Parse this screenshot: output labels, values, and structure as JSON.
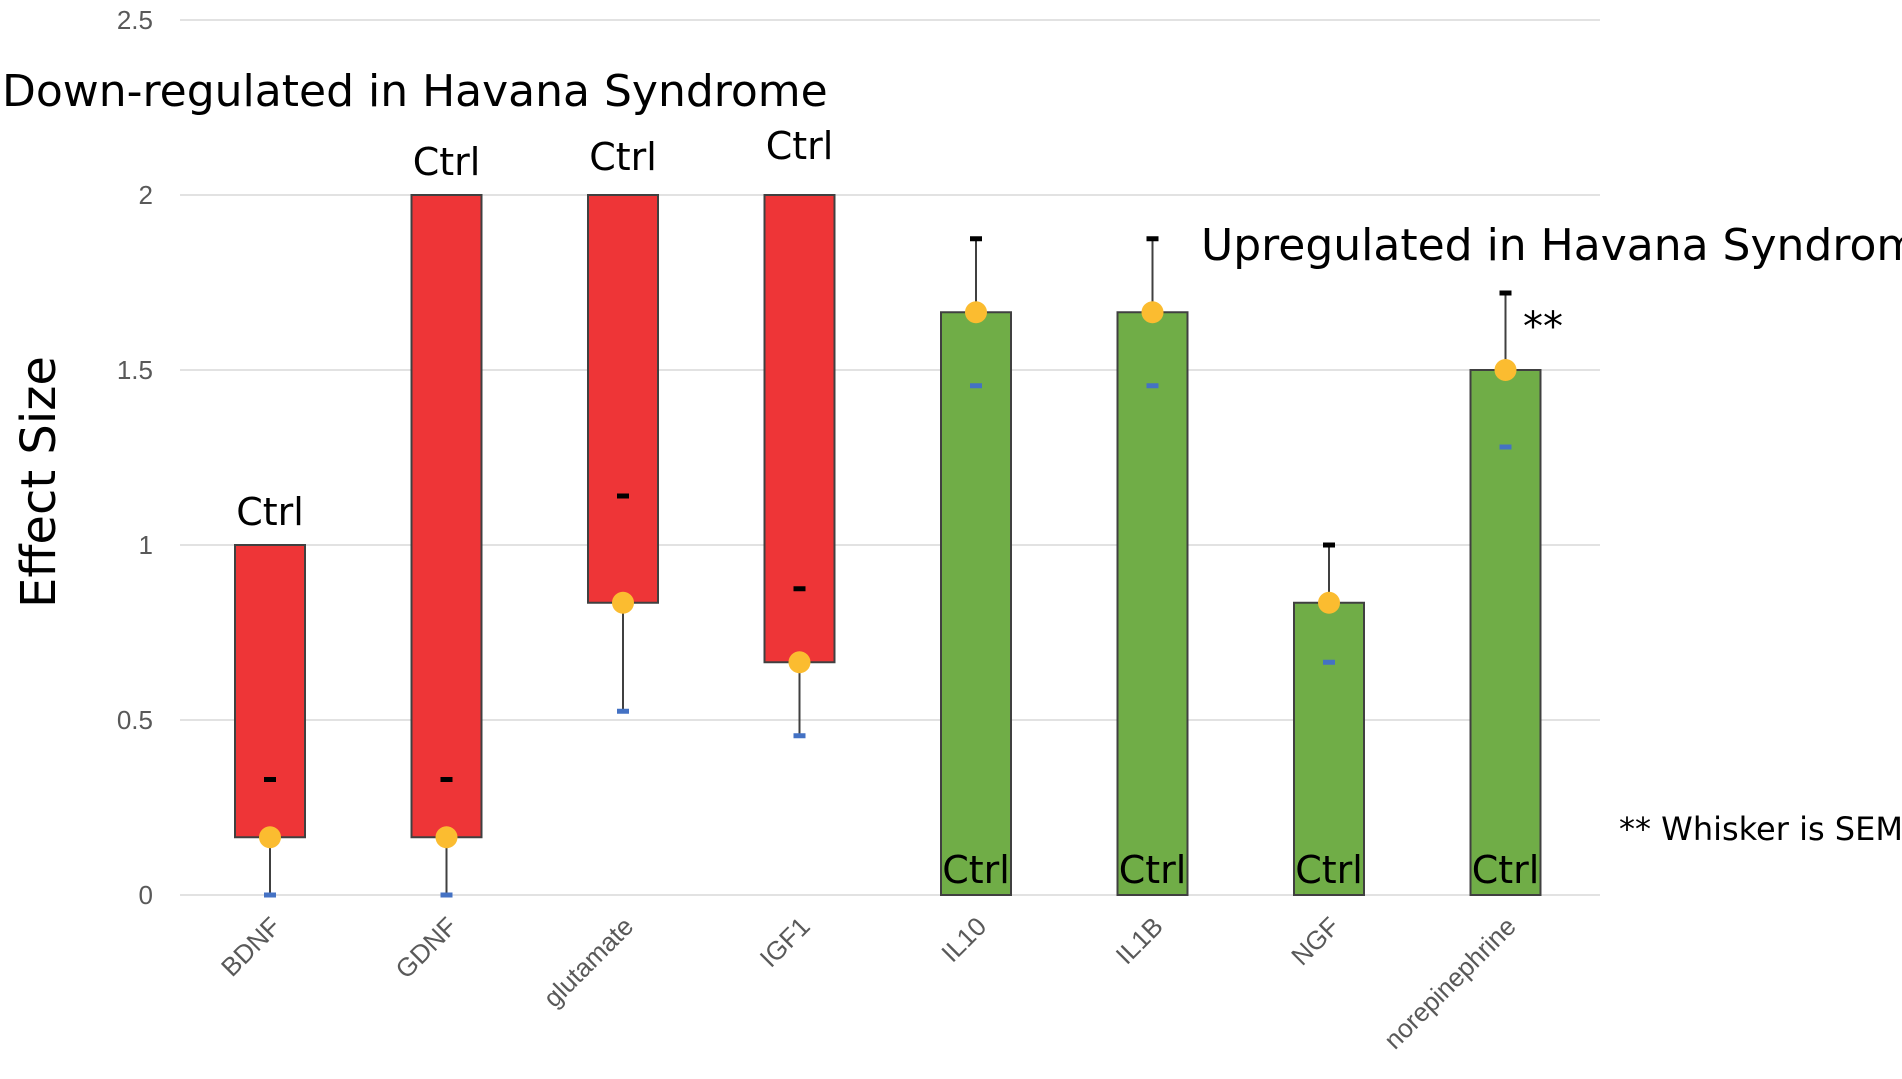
{
  "chart_data": {
    "type": "bar",
    "ylabel": "Effect Size",
    "xlabel": "",
    "ylim": [
      0,
      2.5
    ],
    "yticks": [
      0,
      0.5,
      1,
      1.5,
      2,
      2.5
    ],
    "ytick_labels": [
      "0",
      "0.5",
      "1",
      "1.5",
      "2",
      "2.5"
    ],
    "grid": true,
    "categories": [
      "BDNF",
      "GDNF",
      "glutamate",
      "IGF1",
      "IL10",
      "IL1B",
      "NGF",
      "norepinephrine"
    ],
    "bars": [
      {
        "category": "BDNF",
        "bottom": 0.165,
        "top": 1.0,
        "color": "#ee3537",
        "ctrl_label": "Ctrl",
        "ctrl_position": "above",
        "median": 0.33,
        "median_color": "#000000",
        "mean": 0.165,
        "whisker_from": 0.165,
        "whisker_to": 0.0,
        "whisker_cap_color": "#4472c4"
      },
      {
        "category": "GDNF",
        "bottom": 0.165,
        "top": 2.0,
        "color": "#ee3537",
        "ctrl_label": "Ctrl",
        "ctrl_position": "above",
        "median": 0.33,
        "median_color": "#000000",
        "mean": 0.165,
        "whisker_from": 0.165,
        "whisker_to": 0.0,
        "whisker_cap_color": "#4472c4"
      },
      {
        "category": "glutamate",
        "bottom": 0.835,
        "top": 2.0,
        "color": "#ee3537",
        "ctrl_label": "Ctrl",
        "ctrl_position": "above",
        "median": 1.14,
        "median_color": "#000000",
        "mean": 0.835,
        "whisker_from": 0.835,
        "whisker_to": 0.525,
        "whisker_cap_color": "#4472c4"
      },
      {
        "category": "IGF1",
        "bottom": 0.665,
        "top": 2.0,
        "color": "#ee3537",
        "ctrl_label": "Ctrl",
        "ctrl_position": "above",
        "median": 0.875,
        "median_color": "#000000",
        "mean": 0.665,
        "whisker_from": 0.665,
        "whisker_to": 0.455,
        "whisker_cap_color": "#4472c4"
      },
      {
        "category": "IL10",
        "bottom": 0.0,
        "top": 1.665,
        "color": "#70ad47",
        "ctrl_label": "Ctrl",
        "ctrl_position": "inside",
        "median": 1.455,
        "median_color": "#4472c4",
        "mean": 1.665,
        "whisker_from": 1.665,
        "whisker_to": 1.875,
        "whisker_cap_color": "#000000"
      },
      {
        "category": "IL1B",
        "bottom": 0.0,
        "top": 1.665,
        "color": "#70ad47",
        "ctrl_label": "Ctrl",
        "ctrl_position": "inside",
        "median": 1.455,
        "median_color": "#4472c4",
        "mean": 1.665,
        "whisker_from": 1.665,
        "whisker_to": 1.875,
        "whisker_cap_color": "#000000"
      },
      {
        "category": "NGF",
        "bottom": 0.0,
        "top": 0.835,
        "color": "#70ad47",
        "ctrl_label": "Ctrl",
        "ctrl_position": "inside",
        "median": 0.665,
        "median_color": "#4472c4",
        "mean": 0.835,
        "whisker_from": 0.835,
        "whisker_to": 1.0,
        "whisker_cap_color": "#000000"
      },
      {
        "category": "norepinephrine",
        "bottom": 0.0,
        "top": 1.5,
        "color": "#70ad47",
        "ctrl_label": "Ctrl",
        "ctrl_position": "inside",
        "median": 1.28,
        "median_color": "#4472c4",
        "mean": 1.5,
        "whisker_from": 1.5,
        "whisker_to": 1.72,
        "whisker_cap_color": "#000000"
      }
    ],
    "mean_marker_color": "#fbbc30",
    "annotations": {
      "down": "Down-regulated in Havana Syndrome",
      "up": "Upregulated in Havana Syndrome",
      "stars": "**",
      "stars_category": "norepinephrine",
      "footnote": "** Whisker is SEM"
    }
  }
}
